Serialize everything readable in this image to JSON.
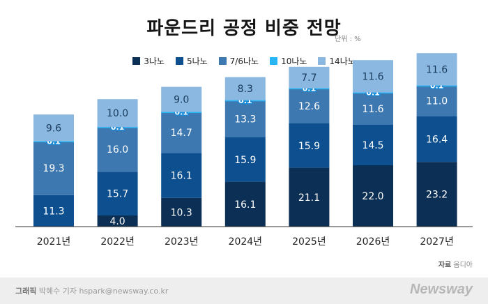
{
  "title": "파운드리 공정 비중 전망",
  "unit_label": "단위 : %",
  "colors": {
    "3nm": "#0c2f55",
    "5nm": "#0d4f8f",
    "7_6nm": "#3d78b0",
    "10nm": "#29b6f6",
    "14nm": "#8ab8e0",
    "label_light": "#ffffff",
    "label_dark": "#1a3a5c",
    "small_label_fill": "#ffffff",
    "small_label_stroke": "#1c8ad4",
    "axis": "#333333"
  },
  "source": {
    "label": "자료",
    "value": "옴디아"
  },
  "footer": {
    "credit_label": "그래픽",
    "credit_text": "박혜수 기자 hspark@newsway.co.kr",
    "logo": "Newsway"
  },
  "chart_data": {
    "type": "bar",
    "stacked": true,
    "categories": [
      "2021년",
      "2022년",
      "2023년",
      "2024년",
      "2025년",
      "2026년",
      "2027년"
    ],
    "series": [
      {
        "name": "3나노",
        "color_key": "3nm",
        "values": [
          0,
          4.0,
          10.3,
          16.1,
          21.1,
          22.0,
          23.2
        ]
      },
      {
        "name": "5나노",
        "color_key": "5nm",
        "values": [
          11.3,
          15.7,
          16.1,
          15.9,
          15.9,
          14.5,
          16.4
        ]
      },
      {
        "name": "7/6나노",
        "color_key": "7_6nm",
        "values": [
          19.3,
          16.0,
          14.7,
          13.3,
          12.6,
          11.6,
          11.0
        ]
      },
      {
        "name": "10나노",
        "color_key": "10nm",
        "values": [
          0.1,
          0.1,
          0.1,
          0.1,
          0.1,
          0.1,
          0.1
        ]
      },
      {
        "name": "14나노",
        "color_key": "14nm",
        "values": [
          9.6,
          10.0,
          9.0,
          8.3,
          7.7,
          11.6,
          11.6
        ]
      }
    ],
    "ylim": [
      0,
      62.5
    ],
    "legend_position": "top-center",
    "grid": false
  }
}
